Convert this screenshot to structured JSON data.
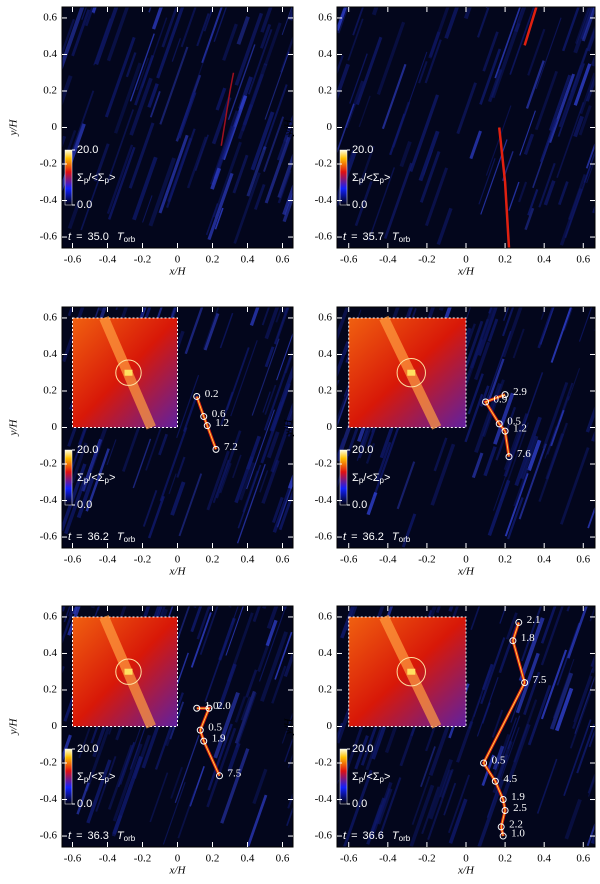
{
  "chart_data": [
    {
      "type": "heatmap",
      "xlabel": "x/H",
      "ylabel": "y/H",
      "xlim": [
        -0.66,
        0.66
      ],
      "ylim": [
        -0.66,
        0.66
      ],
      "xticks": [
        -0.6,
        -0.4,
        -0.2,
        0.0,
        0.2,
        0.4,
        0.6
      ],
      "yticks": [
        -0.6,
        -0.4,
        -0.2,
        0.0,
        0.2,
        0.4,
        0.6
      ],
      "colorbar_ticks": [
        {
          "value": 20,
          "label": "20.0"
        },
        {
          "value": 0,
          "label": "0.0"
        }
      ],
      "colorbar_label": [
        "Σ",
        "p",
        "/<Σ",
        "p",
        ">"
      ],
      "time_symbol": "t",
      "time_equals": "=",
      "time": "35.0",
      "time_unit": "T",
      "time_unit_sub": "orb",
      "inset": false,
      "clumps": []
    },
    {
      "type": "heatmap",
      "xlabel": "x/H",
      "ylabel": "y/H",
      "xlim": [
        -0.66,
        0.66
      ],
      "ylim": [
        -0.66,
        0.66
      ],
      "xticks": [
        -0.6,
        -0.4,
        -0.2,
        0.0,
        0.2,
        0.4,
        0.6
      ],
      "yticks": [
        -0.6,
        -0.4,
        -0.2,
        0.0,
        0.2,
        0.4,
        0.6
      ],
      "colorbar_ticks": [
        {
          "value": 20,
          "label": "20.0"
        },
        {
          "value": 0,
          "label": "0.0"
        }
      ],
      "colorbar_label": [
        "Σ",
        "p",
        "/<Σ",
        "p",
        ">"
      ],
      "time_symbol": "t",
      "time_equals": "=",
      "time": "35.7",
      "time_unit": "T",
      "time_unit_sub": "orb",
      "inset": false,
      "clumps": []
    },
    {
      "type": "heatmap",
      "xlabel": "x/H",
      "ylabel": "y/H",
      "xlim": [
        -0.66,
        0.66
      ],
      "ylim": [
        -0.66,
        0.66
      ],
      "xticks": [
        -0.6,
        -0.4,
        -0.2,
        0.0,
        0.2,
        0.4,
        0.6
      ],
      "yticks": [
        -0.6,
        -0.4,
        -0.2,
        0.0,
        0.2,
        0.4,
        0.6
      ],
      "colorbar_ticks": [
        {
          "value": 20,
          "label": "20.0"
        },
        {
          "value": 0,
          "label": "0.0"
        }
      ],
      "colorbar_label": [
        "Σ",
        "p",
        "/<Σ",
        "p",
        ">"
      ],
      "time_symbol": "t",
      "time_equals": "=",
      "time": "36.2",
      "time_unit": "T",
      "time_unit_sub": "orb",
      "inset": true,
      "clumps": [
        {
          "x": 0.11,
          "y": 0.17,
          "mass": 0.2
        },
        {
          "x": 0.15,
          "y": 0.06,
          "mass": 0.6
        },
        {
          "x": 0.17,
          "y": 0.01,
          "mass": 1.2
        },
        {
          "x": 0.22,
          "y": -0.12,
          "mass": 7.2
        }
      ]
    },
    {
      "type": "heatmap",
      "xlabel": "x/H",
      "ylabel": "y/H",
      "xlim": [
        -0.66,
        0.66
      ],
      "ylim": [
        -0.66,
        0.66
      ],
      "xticks": [
        -0.6,
        -0.4,
        -0.2,
        0.0,
        0.2,
        0.4,
        0.6
      ],
      "yticks": [
        -0.6,
        -0.4,
        -0.2,
        0.0,
        0.2,
        0.4,
        0.6
      ],
      "colorbar_ticks": [
        {
          "value": 20,
          "label": "20.0"
        },
        {
          "value": 0,
          "label": "0.0"
        }
      ],
      "colorbar_label": [
        "Σ",
        "p",
        "/<Σ",
        "p",
        ">"
      ],
      "time_symbol": "t",
      "time_equals": "=",
      "time": "36.2",
      "time_unit": "T",
      "time_unit_sub": "orb",
      "inset": true,
      "clumps": [
        {
          "x": 0.2,
          "y": 0.18,
          "mass": 2.9
        },
        {
          "x": 0.1,
          "y": 0.14,
          "mass": 0.9
        },
        {
          "x": 0.17,
          "y": 0.02,
          "mass": 0.5
        },
        {
          "x": 0.2,
          "y": -0.02,
          "mass": 1.2
        },
        {
          "x": 0.22,
          "y": -0.16,
          "mass": 7.6
        }
      ]
    },
    {
      "type": "heatmap",
      "xlabel": "x/H",
      "ylabel": "y/H",
      "xlim": [
        -0.66,
        0.66
      ],
      "ylim": [
        -0.66,
        0.66
      ],
      "xticks": [
        -0.6,
        -0.4,
        -0.2,
        0.0,
        0.2,
        0.4,
        0.6
      ],
      "yticks": [
        -0.6,
        -0.4,
        -0.2,
        0.0,
        0.2,
        0.4,
        0.6
      ],
      "colorbar_ticks": [
        {
          "value": 20,
          "label": "20.0"
        },
        {
          "value": 0,
          "label": "0.0"
        }
      ],
      "colorbar_label": [
        "Σ",
        "p",
        "/<Σ",
        "p",
        ">"
      ],
      "time_symbol": "t",
      "time_equals": "=",
      "time": "36.3",
      "time_unit": "T",
      "time_unit_sub": "orb",
      "inset": true,
      "clumps": [
        {
          "x": 0.11,
          "y": 0.1,
          "mass": 1,
          "mass_label": "1.0"
        },
        {
          "x": 0.18,
          "y": 0.1,
          "mass": 2.0,
          "mass_label": "2.0"
        },
        {
          "x": 0.13,
          "y": -0.02,
          "mass": 0.5
        },
        {
          "x": 0.15,
          "y": -0.08,
          "mass": 1.9
        },
        {
          "x": 0.24,
          "y": -0.27,
          "mass": 7.5
        }
      ]
    },
    {
      "type": "heatmap",
      "xlabel": "x/H",
      "ylabel": "y/H",
      "xlim": [
        -0.66,
        0.66
      ],
      "ylim": [
        -0.66,
        0.66
      ],
      "xticks": [
        -0.6,
        -0.4,
        -0.2,
        0.0,
        0.2,
        0.4,
        0.6
      ],
      "yticks": [
        -0.6,
        -0.4,
        -0.2,
        0.0,
        0.2,
        0.4,
        0.6
      ],
      "colorbar_ticks": [
        {
          "value": 20,
          "label": "20.0"
        },
        {
          "value": 0,
          "label": "0.0"
        }
      ],
      "colorbar_label": [
        "Σ",
        "p",
        "/<Σ",
        "p",
        ">"
      ],
      "time_symbol": "t",
      "time_equals": "=",
      "time": "36.6",
      "time_unit": "T",
      "time_unit_sub": "orb",
      "inset": true,
      "clumps": [
        {
          "x": 0.27,
          "y": 0.57,
          "mass": 2.1
        },
        {
          "x": 0.24,
          "y": 0.47,
          "mass": 1.8
        },
        {
          "x": 0.3,
          "y": 0.24,
          "mass": 7.5
        },
        {
          "x": 0.09,
          "y": -0.2,
          "mass": 0.5
        },
        {
          "x": 0.15,
          "y": -0.3,
          "mass": 4.5
        },
        {
          "x": 0.19,
          "y": -0.4,
          "mass": 1.9
        },
        {
          "x": 0.2,
          "y": -0.46,
          "mass": 2.5
        },
        {
          "x": 0.18,
          "y": -0.55,
          "mass": 2.2
        },
        {
          "x": 0.19,
          "y": -0.6,
          "mass": 1,
          "mass_label": "1.0"
        }
      ]
    }
  ]
}
